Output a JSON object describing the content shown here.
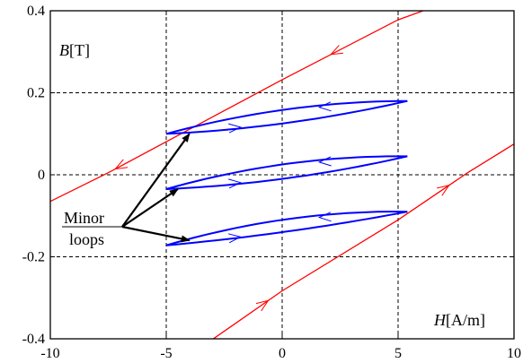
{
  "chart_data": {
    "type": "line",
    "xlim": [
      -10,
      10
    ],
    "ylim": [
      -0.4,
      0.4
    ],
    "x_ticks": [
      -10,
      -5,
      0,
      5,
      10
    ],
    "x_tick_labels": [
      "-10",
      "-5",
      "0",
      "5",
      "10"
    ],
    "y_ticks": [
      -0.4,
      -0.2,
      0,
      0.2,
      0.4
    ],
    "y_tick_labels": [
      "-0.4",
      "-0.2",
      "0",
      "0.2",
      "0.4"
    ],
    "grid": true,
    "xlabel_italic": "H",
    "xlabel_unit": "[A/m]",
    "ylabel_italic": "B",
    "ylabel_unit": "[T]",
    "annotation": {
      "line1": "Minor",
      "line2": "loops",
      "target_points": [
        [
          -4.0,
          0.1
        ],
        [
          -4.5,
          -0.035
        ],
        [
          -4.0,
          -0.16
        ]
      ]
    },
    "colors": {
      "major_loop": "#ff0000",
      "minor_loops": "#0000ff"
    },
    "major_loop": [
      {
        "name": "",
        "direction": "descending",
        "x": [
          -10,
          -7.5,
          0,
          5,
          10
        ],
        "y": [
          -0.065,
          0.005,
          0.232,
          0.378,
          0.48
        ]
      },
      {
        "name": "",
        "direction": "ascending",
        "x": [
          -5,
          0,
          5,
          8,
          10
        ],
        "y": [
          -0.48,
          -0.283,
          -0.11,
          0.005,
          0.075
        ]
      }
    ],
    "minor_loops": [
      {
        "x": [
          -5,
          0,
          5.4
        ],
        "y_upper": [
          0.1,
          0.158,
          0.18
        ],
        "y_lower": [
          0.1,
          0.125,
          0.18
        ]
      },
      {
        "x": [
          -5,
          0,
          5.4
        ],
        "y_upper": [
          -0.035,
          0.025,
          0.045
        ],
        "y_lower": [
          -0.035,
          -0.01,
          0.045
        ]
      },
      {
        "x": [
          -5,
          0,
          5.4
        ],
        "y_upper": [
          -0.172,
          -0.11,
          -0.09
        ],
        "y_lower": [
          -0.172,
          -0.14,
          -0.09
        ]
      }
    ]
  }
}
